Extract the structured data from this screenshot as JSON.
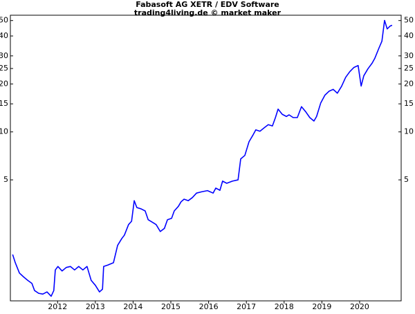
{
  "chart_data": {
    "type": "line",
    "title": "Fabasoft AG XETR / EDV Software",
    "subtitle": "trading4living.de © market maker",
    "color": "#0000ff",
    "yscale": "log",
    "x": [
      2010.81,
      2010.88,
      2010.99,
      2011.1,
      2011.21,
      2011.32,
      2011.39,
      2011.5,
      2011.61,
      2011.72,
      2011.83,
      2011.9,
      2011.94,
      2012.01,
      2012.12,
      2012.23,
      2012.34,
      2012.45,
      2012.56,
      2012.67,
      2012.78,
      2012.89,
      2013.0,
      2013.11,
      2013.19,
      2013.22,
      2013.33,
      2013.48,
      2013.59,
      2013.7,
      2013.77,
      2013.88,
      2013.96,
      2014.03,
      2014.1,
      2014.21,
      2014.32,
      2014.4,
      2014.51,
      2014.61,
      2014.72,
      2014.83,
      2014.91,
      2015.02,
      2015.09,
      2015.2,
      2015.27,
      2015.35,
      2015.46,
      2015.57,
      2015.68,
      2015.82,
      2015.97,
      2016.12,
      2016.19,
      2016.3,
      2016.37,
      2016.48,
      2016.63,
      2016.78,
      2016.85,
      2016.96,
      2017.07,
      2017.18,
      2017.25,
      2017.36,
      2017.47,
      2017.58,
      2017.69,
      2017.77,
      2017.84,
      2017.95,
      2018.06,
      2018.13,
      2018.24,
      2018.35,
      2018.46,
      2018.57,
      2018.68,
      2018.79,
      2018.86,
      2018.97,
      2019.08,
      2019.19,
      2019.3,
      2019.41,
      2019.52,
      2019.63,
      2019.74,
      2019.85,
      2019.96,
      2020.04,
      2020.11,
      2020.22,
      2020.33,
      2020.4,
      2020.51,
      2020.59,
      2020.66,
      2020.73,
      2020.81,
      2020.86
    ],
    "values": [
      1.7,
      1.51,
      1.3,
      1.23,
      1.17,
      1.12,
      1.01,
      0.97,
      0.96,
      0.99,
      0.93,
      1.01,
      1.36,
      1.43,
      1.34,
      1.41,
      1.43,
      1.36,
      1.43,
      1.36,
      1.43,
      1.17,
      1.09,
      0.99,
      1.03,
      1.43,
      1.46,
      1.51,
      1.94,
      2.14,
      2.25,
      2.62,
      2.75,
      3.7,
      3.35,
      3.29,
      3.19,
      2.81,
      2.71,
      2.62,
      2.37,
      2.48,
      2.81,
      2.87,
      3.19,
      3.41,
      3.64,
      3.78,
      3.7,
      3.87,
      4.13,
      4.21,
      4.28,
      4.13,
      4.44,
      4.3,
      4.91,
      4.76,
      4.91,
      5.0,
      6.77,
      7.12,
      8.67,
      9.6,
      10.3,
      10.1,
      10.6,
      11.1,
      10.9,
      12.3,
      13.9,
      12.9,
      12.5,
      12.8,
      12.3,
      12.3,
      14.4,
      13.4,
      12.3,
      11.7,
      12.5,
      15.2,
      17.0,
      18.0,
      18.5,
      17.5,
      19.3,
      22.0,
      23.9,
      25.4,
      26.1,
      19.4,
      22.5,
      24.9,
      27.0,
      28.9,
      33.5,
      37.1,
      50.1,
      44.3,
      46.2,
      46.7
    ],
    "xlim": [
      2010.75,
      2021.1
    ],
    "xticks": [
      2012,
      2013,
      2014,
      2015,
      2016,
      2017,
      2018,
      2019,
      2020
    ],
    "ylim": [
      0.87,
      54
    ],
    "yticks": [
      5,
      10,
      15,
      20,
      25,
      30,
      40,
      50
    ]
  }
}
